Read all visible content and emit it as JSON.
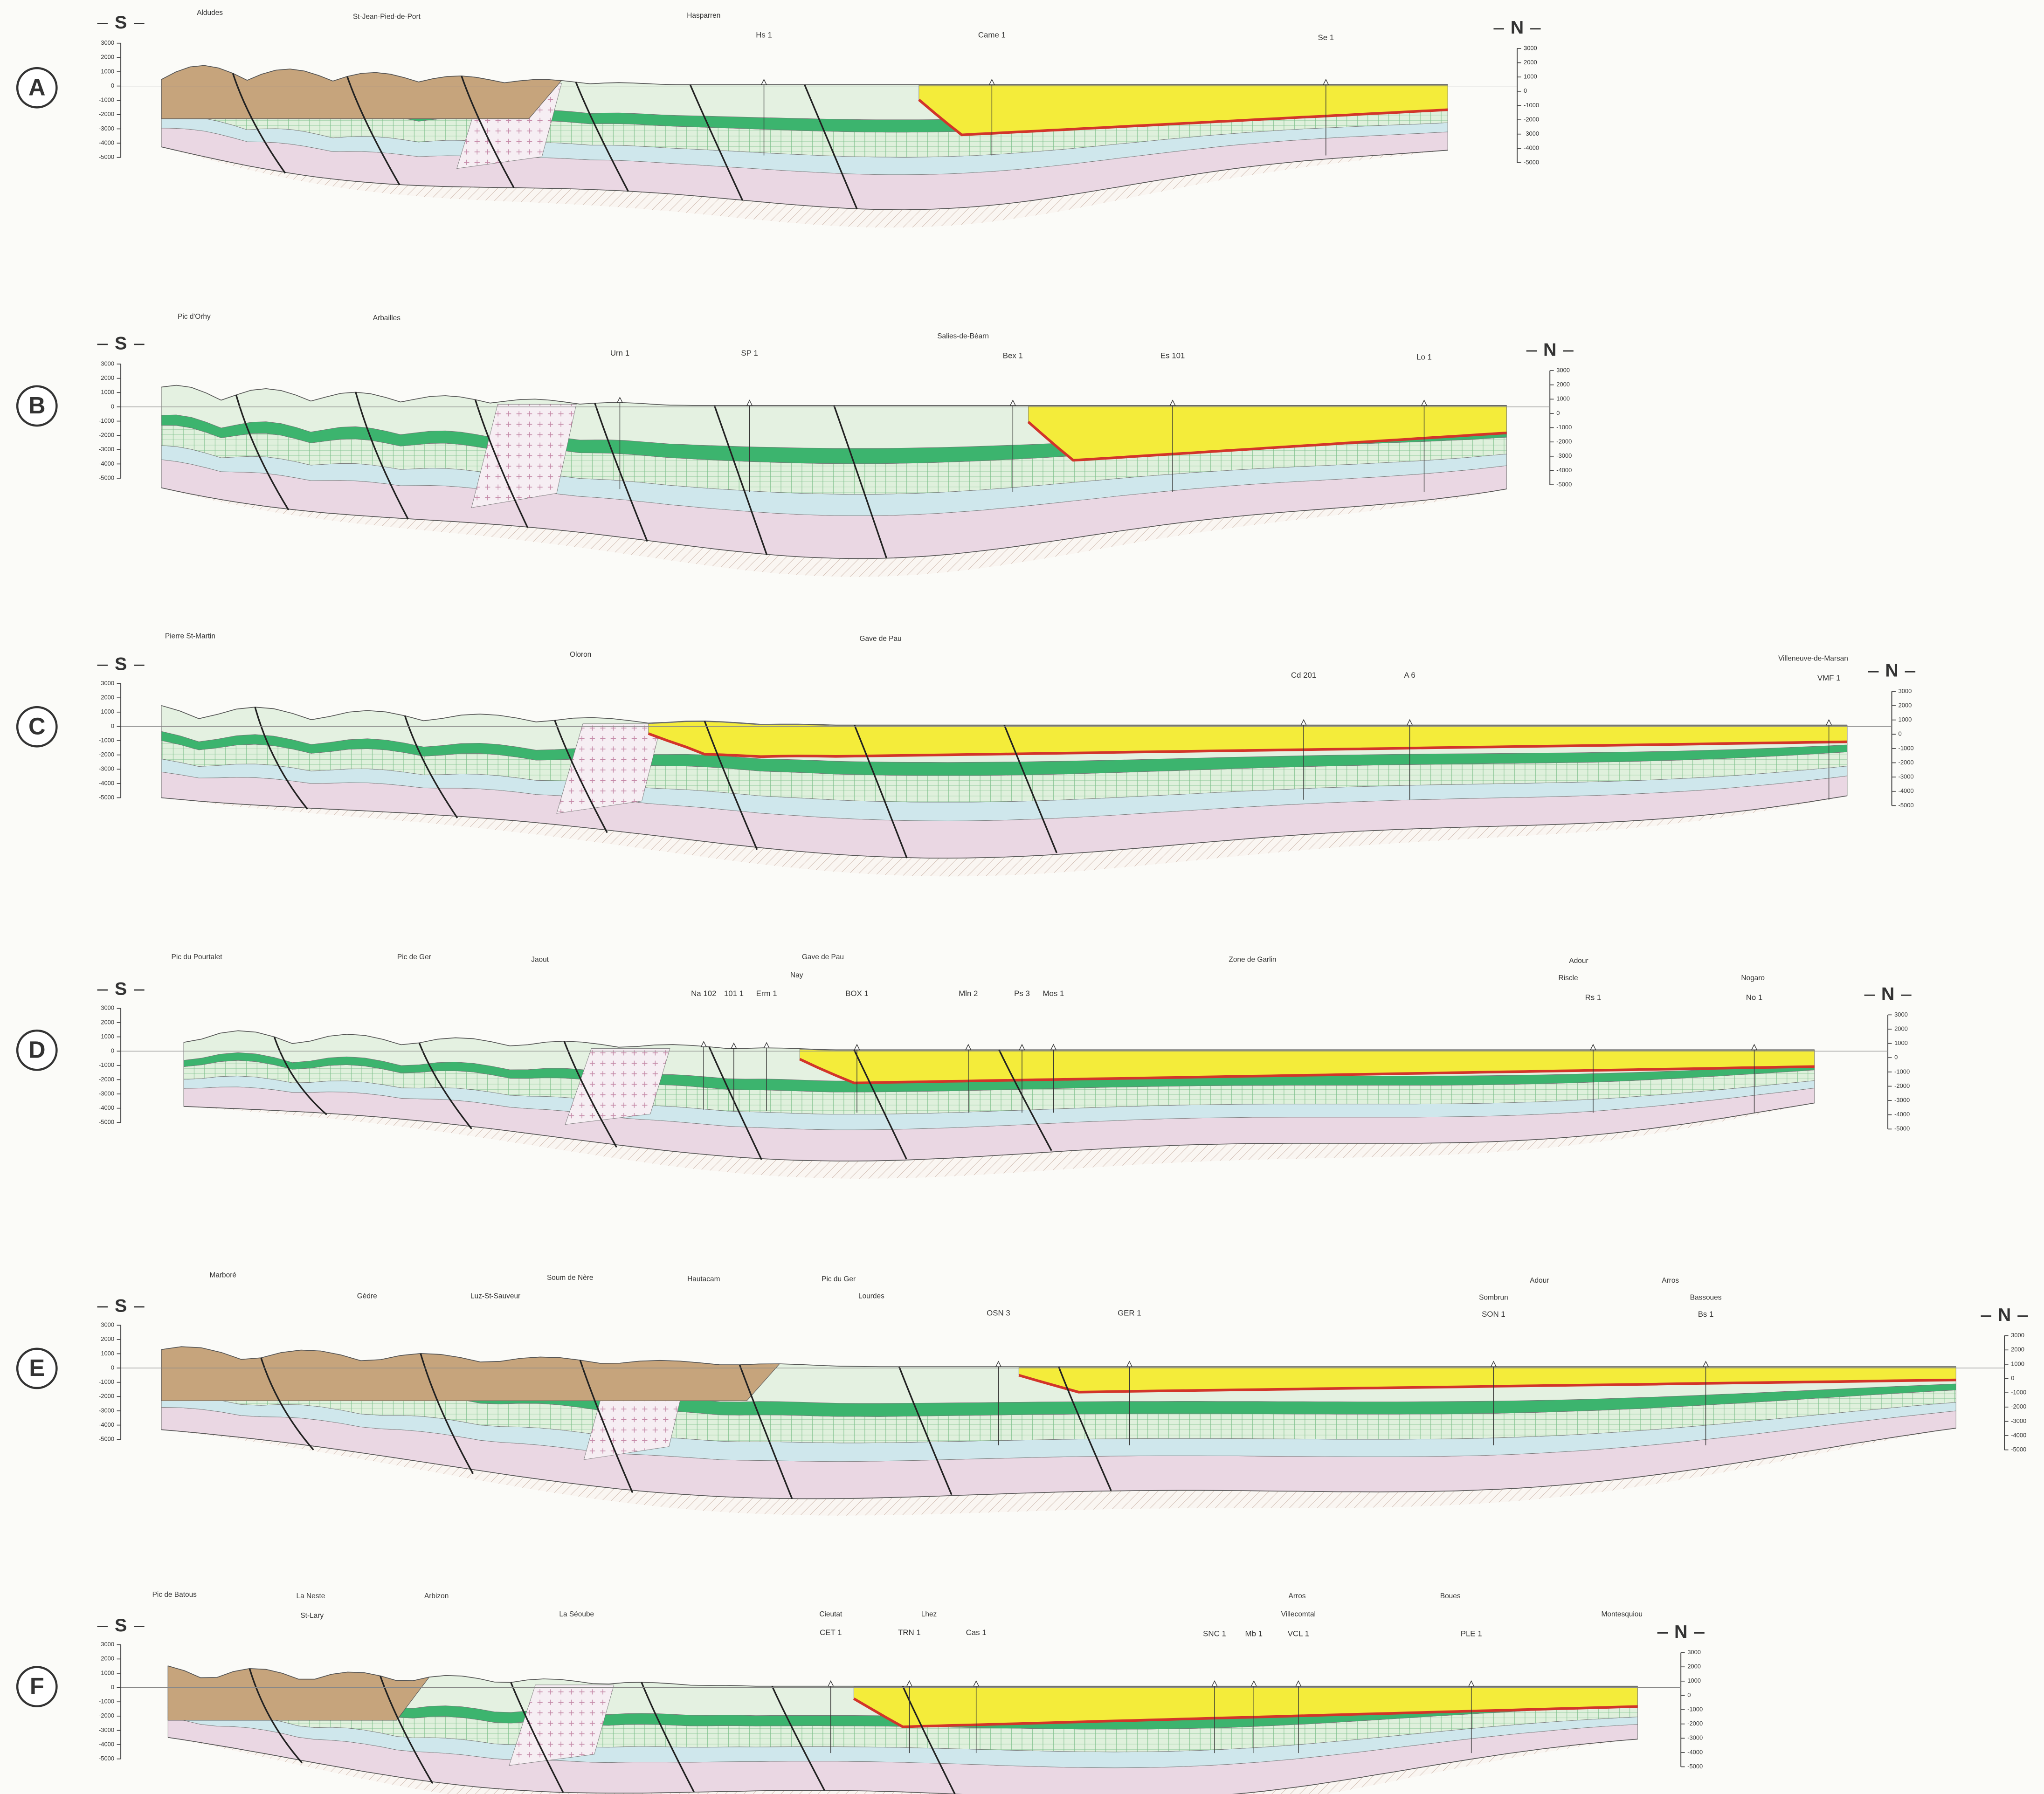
{
  "depth_scale": [
    "3000",
    "2000",
    "1000",
    "0",
    "-1000",
    "-2000",
    "-3000",
    "-4000",
    "-5000"
  ],
  "sections": [
    {
      "letter": "A",
      "south": "S",
      "north": "N",
      "places": [
        "Aldudes",
        "St-Jean-Pied-de-Port",
        "Hasparren"
      ],
      "wells": [
        "Hs 1",
        "Came 1",
        "Se 1"
      ]
    },
    {
      "letter": "B",
      "south": "S",
      "north": "N",
      "places": [
        "Pic d'Orhy",
        "Arbailles",
        "Salies-de-Béarn"
      ],
      "wells": [
        "Urn 1",
        "SP 1",
        "Bex 1",
        "Es 101",
        "Lo 1"
      ]
    },
    {
      "letter": "C",
      "south": "S",
      "north": "N",
      "places": [
        "Pierre St-Martin",
        "Oloron",
        "Gave de Pau",
        "Villeneuve-de-Marsan"
      ],
      "wells": [
        "Cd 201",
        "A 6",
        "VMF 1"
      ]
    },
    {
      "letter": "D",
      "south": "S",
      "north": "N",
      "places": [
        "Pic du Pourtalet",
        "Pic de Ger",
        "Jaout",
        "Gave de Pau",
        "Zone de Garlin",
        "Adour",
        "Nay",
        "Riscle",
        "Nogaro"
      ],
      "wells": [
        "Na 102",
        "101 1",
        "Erm 1",
        "BOX 1",
        "Mln 2",
        "Ps 3",
        "Mos 1",
        "Rs 1",
        "No 1"
      ]
    },
    {
      "letter": "E",
      "south": "S",
      "north": "N",
      "places": [
        "Marboré",
        "Gèdre",
        "Luz-St-Sauveur",
        "Soum de Nère",
        "Hautacam",
        "Pic du Ger",
        "Lourdes",
        "Adour",
        "Arros",
        "Sombrun",
        "Bassoues"
      ],
      "wells": [
        "OSN 3",
        "GER 1",
        "SON 1",
        "Bs 1"
      ]
    },
    {
      "letter": "F",
      "south": "S",
      "north": "N",
      "places": [
        "Pic de Batous",
        "La Neste",
        "Arbizon",
        "St-Lary",
        "La Séoube",
        "Cieutat",
        "Lhez",
        "Arros",
        "Villecomtal",
        "Boues",
        "Montesquiou"
      ],
      "wells": [
        "CET 1",
        "TRN 1",
        "Cas 1",
        "SNC 1",
        "Mb 1",
        "VCL 1",
        "PLE 1"
      ]
    }
  ]
}
